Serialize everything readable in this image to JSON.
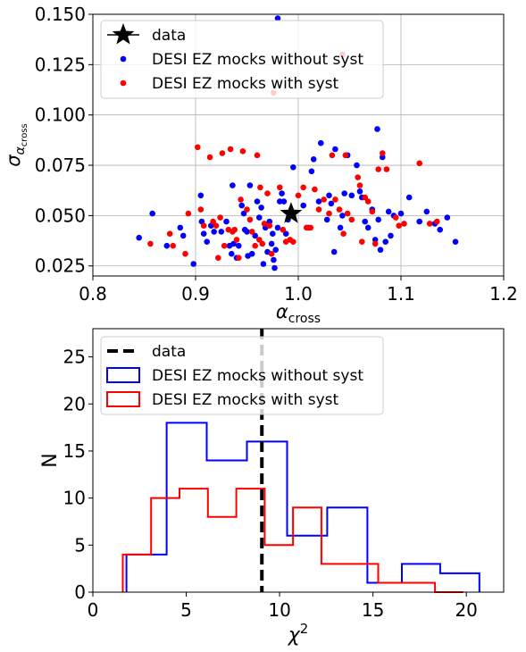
{
  "chart_data": [
    {
      "type": "scatter",
      "xlabel": "α",
      "xlabel_sub": "cross",
      "ylabel": "σ",
      "ylabel_sub": "α",
      "ylabel_subsub": "cross",
      "xlim": [
        0.8,
        1.2
      ],
      "ylim": [
        0.02,
        0.15
      ],
      "xticks": [
        "0.8",
        "0.9",
        "1.0",
        "1.1",
        "1.2"
      ],
      "xtick_values": [
        0.8,
        0.9,
        1.0,
        1.1,
        1.2
      ],
      "yticks": [
        "0.025",
        "0.050",
        "0.075",
        "0.100",
        "0.125",
        "0.150"
      ],
      "ytick_values": [
        0.025,
        0.05,
        0.075,
        0.1,
        0.125,
        0.15
      ],
      "grid": true,
      "legend_position": "upper-left",
      "legend": [
        {
          "label": "data",
          "marker": "star",
          "color": "#000000"
        },
        {
          "label": "DESI EZ mocks without syst",
          "marker": "dot",
          "color": "#0000ff"
        },
        {
          "label": "DESI EZ mocks with syst",
          "marker": "dot",
          "color": "#ff0000"
        }
      ],
      "series": [
        {
          "name": "data",
          "color": "#000000",
          "marker": "star",
          "points": [
            [
              0.993,
              0.051
            ]
          ]
        },
        {
          "name": "DESI EZ mocks without syst",
          "color": "#0000ff",
          "marker": "dot",
          "points": [
            [
              0.98,
              0.148
            ],
            [
              0.845,
              0.039
            ],
            [
              0.858,
              0.051
            ],
            [
              0.872,
              0.035
            ],
            [
              0.885,
              0.044
            ],
            [
              0.888,
              0.04
            ],
            [
              0.898,
              0.026
            ],
            [
              0.905,
              0.06
            ],
            [
              0.906,
              0.047
            ],
            [
              0.908,
              0.041
            ],
            [
              0.911,
              0.037
            ],
            [
              0.915,
              0.045
            ],
            [
              0.918,
              0.042
            ],
            [
              0.925,
              0.042
            ],
            [
              0.93,
              0.047
            ],
            [
              0.933,
              0.035
            ],
            [
              0.935,
              0.031
            ],
            [
              0.936,
              0.065
            ],
            [
              0.937,
              0.036
            ],
            [
              0.94,
              0.029
            ],
            [
              0.942,
              0.035
            ],
            [
              0.945,
              0.055
            ],
            [
              0.947,
              0.051
            ],
            [
              0.948,
              0.043
            ],
            [
              0.95,
              0.042
            ],
            [
              0.951,
              0.03
            ],
            [
              0.953,
              0.065
            ],
            [
              0.955,
              0.031
            ],
            [
              0.958,
              0.04
            ],
            [
              0.96,
              0.057
            ],
            [
              0.962,
              0.049
            ],
            [
              0.964,
              0.054
            ],
            [
              0.966,
              0.026
            ],
            [
              0.968,
              0.044
            ],
            [
              0.97,
              0.032
            ],
            [
              0.972,
              0.047
            ],
            [
              0.974,
              0.036
            ],
            [
              0.975,
              0.041
            ],
            [
              0.976,
              0.028
            ],
            [
              0.977,
              0.024
            ],
            [
              0.978,
              0.033
            ],
            [
              0.98,
              0.044
            ],
            [
              0.982,
              0.057
            ],
            [
              0.984,
              0.061
            ],
            [
              0.986,
              0.057
            ],
            [
              0.988,
              0.041
            ],
            [
              0.99,
              0.048
            ],
            [
              0.995,
              0.074
            ],
            [
              1.005,
              0.055
            ],
            [
              1.01,
              0.044
            ],
            [
              1.013,
              0.072
            ],
            [
              1.015,
              0.078
            ],
            [
              1.02,
              0.057
            ],
            [
              1.022,
              0.086
            ],
            [
              1.028,
              0.048
            ],
            [
              1.03,
              0.06
            ],
            [
              1.032,
              0.056
            ],
            [
              1.035,
              0.032
            ],
            [
              1.036,
              0.083
            ],
            [
              1.041,
              0.044
            ],
            [
              1.043,
              0.05
            ],
            [
              1.045,
              0.061
            ],
            [
              1.048,
              0.08
            ],
            [
              1.052,
              0.06
            ],
            [
              1.057,
              0.075
            ],
            [
              1.06,
              0.062
            ],
            [
              1.062,
              0.059
            ],
            [
              1.065,
              0.047
            ],
            [
              1.068,
              0.044
            ],
            [
              1.072,
              0.053
            ],
            [
              1.075,
              0.038
            ],
            [
              1.077,
              0.093
            ],
            [
              1.078,
              0.048
            ],
            [
              1.08,
              0.033
            ],
            [
              1.082,
              0.079
            ],
            [
              1.085,
              0.037
            ],
            [
              1.088,
              0.052
            ],
            [
              1.09,
              0.04
            ],
            [
              1.093,
              0.05
            ],
            [
              1.1,
              0.051
            ],
            [
              1.108,
              0.059
            ],
            [
              1.118,
              0.047
            ],
            [
              1.125,
              0.052
            ],
            [
              1.133,
              0.046
            ],
            [
              1.138,
              0.043
            ],
            [
              1.145,
              0.049
            ],
            [
              1.153,
              0.037
            ]
          ]
        },
        {
          "name": "DESI EZ mocks with syst",
          "color": "#ff0000",
          "marker": "dot",
          "points": [
            [
              1.043,
              0.13
            ],
            [
              0.976,
              0.111
            ],
            [
              0.856,
              0.036
            ],
            [
              0.875,
              0.041
            ],
            [
              0.878,
              0.035
            ],
            [
              0.89,
              0.031
            ],
            [
              0.893,
              0.051
            ],
            [
              0.902,
              0.084
            ],
            [
              0.905,
              0.053
            ],
            [
              0.908,
              0.045
            ],
            [
              0.914,
              0.079
            ],
            [
              0.917,
              0.047
            ],
            [
              0.92,
              0.045
            ],
            [
              0.922,
              0.029
            ],
            [
              0.924,
              0.049
            ],
            [
              0.926,
              0.081
            ],
            [
              0.928,
              0.035
            ],
            [
              0.932,
              0.043
            ],
            [
              0.934,
              0.083
            ],
            [
              0.936,
              0.042
            ],
            [
              0.938,
              0.043
            ],
            [
              0.94,
              0.038
            ],
            [
              0.942,
              0.029
            ],
            [
              0.944,
              0.058
            ],
            [
              0.946,
              0.082
            ],
            [
              0.95,
              0.053
            ],
            [
              0.953,
              0.048
            ],
            [
              0.955,
              0.042
            ],
            [
              0.958,
              0.035
            ],
            [
              0.96,
              0.08
            ],
            [
              0.962,
              0.038
            ],
            [
              0.963,
              0.064
            ],
            [
              0.965,
              0.036
            ],
            [
              0.967,
              0.046
            ],
            [
              0.97,
              0.061
            ],
            [
              0.972,
              0.045
            ],
            [
              0.974,
              0.031
            ],
            [
              0.982,
              0.064
            ],
            [
              0.985,
              0.043
            ],
            [
              0.988,
              0.037
            ],
            [
              0.992,
              0.038
            ],
            [
              0.995,
              0.037
            ],
            [
              1.0,
              0.06
            ],
            [
              1.005,
              0.064
            ],
            [
              1.008,
              0.044
            ],
            [
              1.012,
              0.044
            ],
            [
              1.016,
              0.063
            ],
            [
              1.02,
              0.053
            ],
            [
              1.025,
              0.058
            ],
            [
              1.03,
              0.051
            ],
            [
              1.033,
              0.08
            ],
            [
              1.036,
              0.058
            ],
            [
              1.04,
              0.053
            ],
            [
              1.044,
              0.041
            ],
            [
              1.046,
              0.08
            ],
            [
              1.048,
              0.051
            ],
            [
              1.052,
              0.048
            ],
            [
              1.058,
              0.069
            ],
            [
              1.06,
              0.065
            ],
            [
              1.062,
              0.037
            ],
            [
              1.065,
              0.059
            ],
            [
              1.068,
              0.057
            ],
            [
              1.072,
              0.052
            ],
            [
              1.075,
              0.036
            ],
            [
              1.078,
              0.073
            ],
            [
              1.082,
              0.081
            ],
            [
              1.086,
              0.073
            ],
            [
              1.095,
              0.049
            ],
            [
              1.098,
              0.045
            ],
            [
              1.103,
              0.046
            ],
            [
              1.118,
              0.076
            ],
            [
              1.128,
              0.046
            ],
            [
              1.135,
              0.047
            ]
          ]
        }
      ]
    },
    {
      "type": "histogram",
      "xlabel": "χ",
      "xlabel_sup": "2",
      "ylabel": "N",
      "xlim": [
        0,
        22
      ],
      "ylim": [
        0,
        28
      ],
      "xticks": [
        "0",
        "5",
        "10",
        "15",
        "20"
      ],
      "xtick_values": [
        0,
        5,
        10,
        15,
        20
      ],
      "yticks": [
        "0",
        "5",
        "10",
        "15",
        "20",
        "25"
      ],
      "ytick_values": [
        0,
        5,
        10,
        15,
        20,
        25
      ],
      "grid": false,
      "legend_position": "upper-left",
      "legend": [
        {
          "label": "data",
          "style": "dashed-line",
          "color": "#000000"
        },
        {
          "label": "DESI EZ mocks without syst",
          "style": "step",
          "color": "#0000ff"
        },
        {
          "label": "DESI EZ mocks with syst",
          "style": "step",
          "color": "#ff0000"
        }
      ],
      "data_line_x": 9.05,
      "series": [
        {
          "name": "DESI EZ mocks without syst",
          "color": "#0000ff",
          "bin_edges": [
            1.8,
            3.95,
            6.1,
            8.25,
            10.4,
            12.55,
            14.7,
            16.55,
            18.6,
            20.7
          ],
          "counts": [
            4,
            18,
            14,
            16,
            6,
            9,
            1,
            3,
            2
          ]
        },
        {
          "name": "DESI EZ mocks with syst",
          "color": "#ff0000",
          "bin_edges": [
            1.6,
            3.12,
            4.64,
            6.16,
            7.68,
            9.2,
            10.72,
            12.24,
            13.76,
            15.28,
            16.8,
            18.32,
            19.84
          ],
          "counts": [
            4,
            10,
            11,
            8,
            11,
            5,
            9,
            3,
            3,
            1,
            1,
            0
          ]
        }
      ]
    }
  ]
}
